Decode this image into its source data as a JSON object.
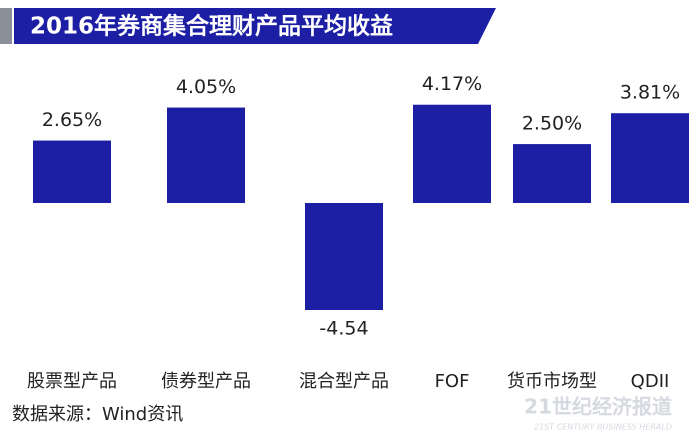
{
  "chart_data": {
    "type": "bar",
    "title": "2016年券商集合理财产品平均收益",
    "categories": [
      "股票型产品",
      "债券型产品",
      "混合型产品",
      "FOF",
      "货币市场型",
      "QDII"
    ],
    "values": [
      2.65,
      4.05,
      -4.54,
      4.17,
      2.5,
      3.81
    ],
    "value_labels": [
      "2.65%",
      "4.05%",
      "-4.54",
      "4.17%",
      "2.50%",
      "3.81%"
    ],
    "color": "#1c1fa3",
    "source": "数据来源：Wind资讯",
    "watermark": "21世纪经济报道",
    "watermark_en": "21ST CENTURY BUSINESS HERALD"
  }
}
